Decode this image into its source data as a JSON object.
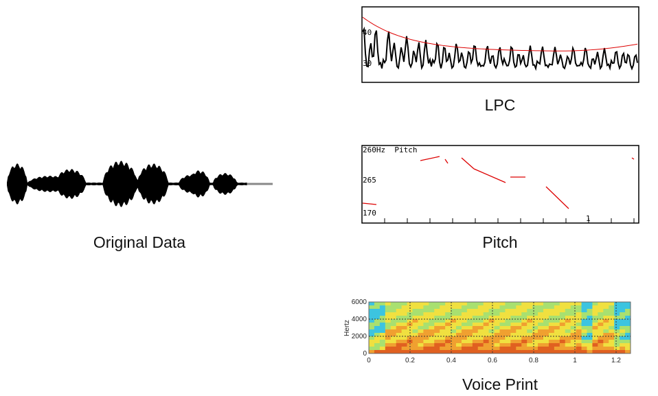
{
  "panels": [
    {
      "label": "Original Data"
    },
    {
      "label": "LPC",
      "axis_labels": [
        "40",
        "30"
      ]
    },
    {
      "label": "Pitch",
      "title": "260Hz  Pitch",
      "axis_labels": [
        "265",
        "170"
      ],
      "x_labels": [
        "1"
      ]
    },
    {
      "label": "Voice Print",
      "y_title": "Hertz",
      "y_labels": [
        "6000",
        "4000",
        "2000",
        "0"
      ],
      "x_labels": [
        "0",
        "0.2",
        "0.4",
        "0.6",
        "0.8",
        "1",
        "1.2"
      ]
    }
  ]
}
